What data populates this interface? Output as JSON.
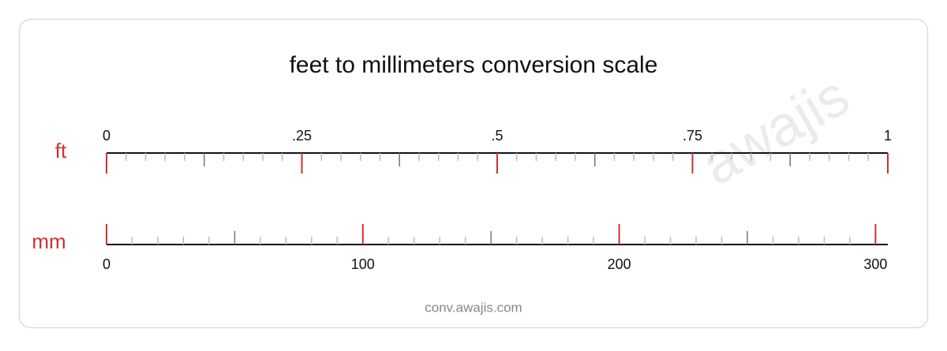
{
  "title": "feet to millimeters conversion scale",
  "watermark": "awajis",
  "footer": "conv.awajis.com",
  "scales": [
    {
      "unit": "ft",
      "lim": [
        0,
        1
      ],
      "ticks": [
        0,
        {
          "value": 0.25,
          "label": ".25"
        },
        {
          "value": 0.5,
          "label": ".5"
        },
        {
          "value": 0.75,
          "label": ".75"
        },
        1
      ],
      "minor_step": 0.025,
      "mid_step": 0.125,
      "color": "#d32f2f"
    },
    {
      "unit": "mm",
      "lim": [
        0,
        304.8
      ],
      "ticks": [
        0,
        100,
        200,
        300
      ],
      "minor_step": 10,
      "mid_step": 50,
      "color": "#d32f2f"
    }
  ]
}
